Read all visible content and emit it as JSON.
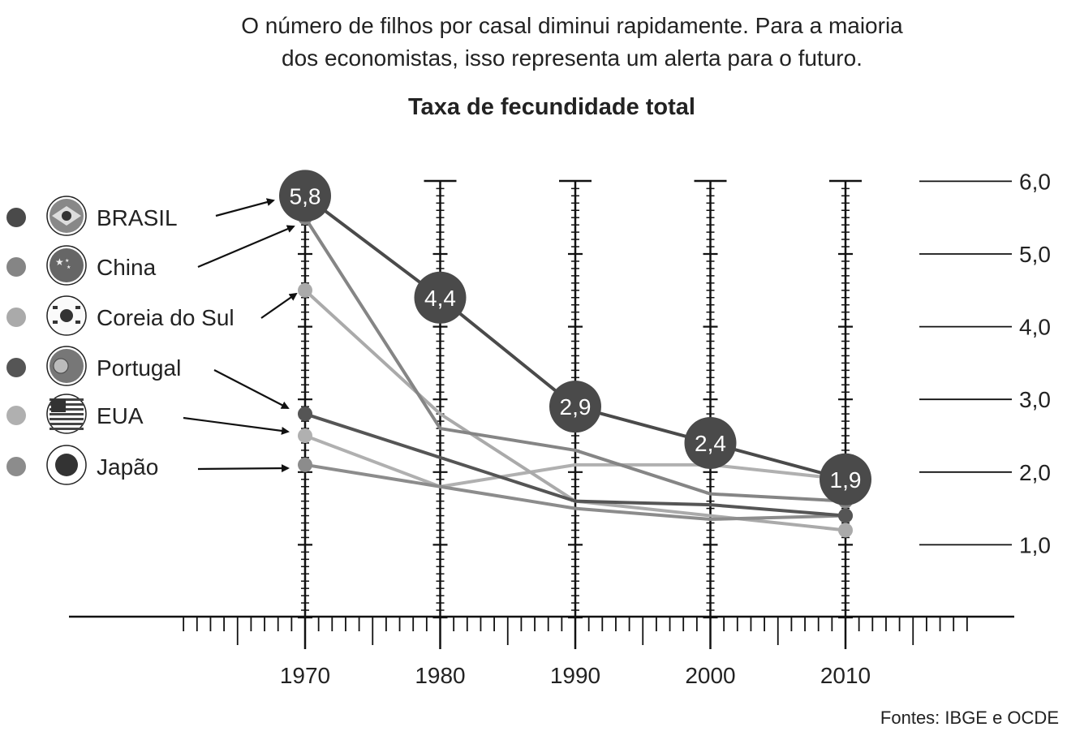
{
  "intro": {
    "line1": "O número de filhos por casal diminui rapidamente. Para a maioria",
    "line2": "dos economistas, isso representa um alerta para o futuro."
  },
  "source": "Fontes: IBGE e OCDE",
  "chart_data": {
    "type": "line",
    "title": "Taxa de fecundidade total",
    "xlabel": "",
    "ylabel": "",
    "x": [
      1970,
      1980,
      1990,
      2000,
      2010
    ],
    "x_tick_labels": [
      "1970",
      "1980",
      "1990",
      "2000",
      "2010"
    ],
    "ylim": [
      0,
      6
    ],
    "y_ticks": [
      1,
      2,
      3,
      4,
      5,
      6
    ],
    "y_tick_labels": [
      "1,0",
      "2,0",
      "3,0",
      "4,0",
      "5,0",
      "6,0"
    ],
    "legend_position": "left",
    "series": [
      {
        "name": "BRASIL",
        "color": "#4a4a4a",
        "icon": "brazil-flag-icon",
        "values": [
          5.8,
          4.4,
          2.9,
          2.4,
          1.9
        ],
        "labels": [
          "5,8",
          "4,4",
          "2,9",
          "2,4",
          "1,9"
        ]
      },
      {
        "name": "China",
        "color": "#858585",
        "icon": "china-flag-icon",
        "values": [
          5.5,
          2.6,
          2.3,
          1.7,
          1.6
        ]
      },
      {
        "name": "Coreia do Sul",
        "color": "#aaaaaa",
        "icon": "south-korea-flag-icon",
        "values": [
          4.5,
          2.8,
          1.6,
          1.4,
          1.2
        ]
      },
      {
        "name": "Portugal",
        "color": "#555555",
        "icon": "portugal-flag-icon",
        "values": [
          2.8,
          2.2,
          1.6,
          1.55,
          1.4
        ]
      },
      {
        "name": "EUA",
        "color": "#b0b0b0",
        "icon": "usa-flag-icon",
        "values": [
          2.5,
          1.8,
          2.1,
          2.1,
          1.9
        ]
      },
      {
        "name": "Japão",
        "color": "#8c8c8c",
        "icon": "japan-flag-icon",
        "values": [
          2.1,
          1.8,
          1.5,
          1.35,
          1.4
        ]
      }
    ]
  }
}
